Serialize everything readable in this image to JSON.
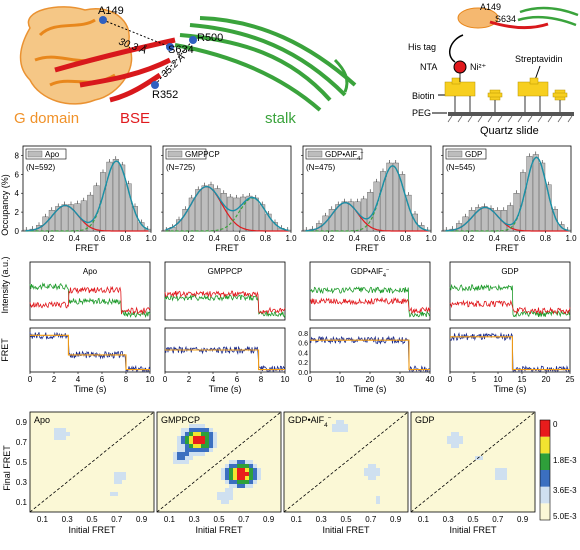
{
  "structure": {
    "labels": {
      "a149": "A149",
      "s634": "S634",
      "r500": "R500",
      "r352": "R352",
      "dist1": "30.3 Å",
      "dist2": "35.2 Å",
      "g_domain": "G domain",
      "bse": "BSE",
      "stalk": "stalk"
    },
    "colors": {
      "g_domain": "#f0922a",
      "bse": "#e0191d",
      "stalk": "#3aa33c"
    }
  },
  "schematic": {
    "a149": "A149",
    "s634": "S634",
    "his_tag": "His tag",
    "nta": "NTA",
    "ni": "Ni²⁺",
    "streptavidin": "Streptavidin",
    "biotin": "Biotin",
    "peg": "PEG",
    "slide": "Quartz slide"
  },
  "histograms": {
    "ylabel": "Occupancy (%)",
    "xlabel": "FRET",
    "yticks": [
      "0",
      "2",
      "4",
      "6",
      "8"
    ],
    "xticks": [
      "0.2",
      "0.4",
      "0.6",
      "0.8",
      "1.0"
    ],
    "panels": [
      {
        "legend": "Apo",
        "n": "(N=592)"
      },
      {
        "legend": "GMPPCP",
        "n": "(N=725)"
      },
      {
        "legend": "GDP•AlF",
        "legend_sub": "4",
        "legend_sup": "−",
        "n": "(N=475)"
      },
      {
        "legend": "GDP",
        "n": "(N=545)"
      }
    ]
  },
  "chart_data": [
    {
      "type": "bar",
      "title": "Apo",
      "xlabel": "FRET",
      "ylabel": "Occupancy (%)",
      "xlim": [
        0,
        1.0
      ],
      "ylim": [
        0,
        9
      ],
      "x": [
        0.025,
        0.075,
        0.125,
        0.175,
        0.225,
        0.275,
        0.325,
        0.375,
        0.425,
        0.475,
        0.525,
        0.575,
        0.625,
        0.675,
        0.725,
        0.775,
        0.825,
        0.875,
        0.925,
        0.975
      ],
      "values": [
        0.1,
        0.2,
        0.6,
        1.5,
        2.2,
        2.6,
        2.8,
        2.8,
        2.9,
        3.2,
        3.8,
        4.8,
        6.2,
        7.3,
        7.6,
        7.0,
        5.0,
        2.6,
        0.9,
        0.2
      ],
      "fits": [
        {
          "mu": 0.33,
          "sd": 0.1,
          "a": 2.7
        },
        {
          "mu": 0.73,
          "sd": 0.09,
          "a": 7.4
        }
      ]
    },
    {
      "type": "bar",
      "title": "GMPPCP",
      "xlabel": "FRET",
      "ylabel": "Occupancy (%)",
      "xlim": [
        0,
        1.0
      ],
      "ylim": [
        0,
        9
      ],
      "x": [
        0.025,
        0.075,
        0.125,
        0.175,
        0.225,
        0.275,
        0.325,
        0.375,
        0.425,
        0.475,
        0.525,
        0.575,
        0.625,
        0.675,
        0.725,
        0.775,
        0.825,
        0.875,
        0.925,
        0.975
      ],
      "values": [
        0.1,
        0.4,
        1.2,
        2.3,
        3.5,
        4.4,
        4.8,
        4.9,
        4.5,
        4.0,
        3.6,
        3.5,
        3.6,
        3.7,
        3.5,
        2.8,
        1.8,
        0.9,
        0.3,
        0.1
      ],
      "fits": [
        {
          "mu": 0.34,
          "sd": 0.12,
          "a": 4.7
        },
        {
          "mu": 0.7,
          "sd": 0.1,
          "a": 3.5
        }
      ]
    },
    {
      "type": "bar",
      "title": "GDP•AlF4−",
      "xlabel": "FRET",
      "ylabel": "Occupancy (%)",
      "xlim": [
        0,
        1.0
      ],
      "ylim": [
        0,
        9
      ],
      "x": [
        0.025,
        0.075,
        0.125,
        0.175,
        0.225,
        0.275,
        0.325,
        0.375,
        0.425,
        0.475,
        0.525,
        0.575,
        0.625,
        0.675,
        0.725,
        0.775,
        0.825,
        0.875,
        0.925,
        0.975
      ],
      "values": [
        0.1,
        0.2,
        0.8,
        1.6,
        2.3,
        2.8,
        3.1,
        3.1,
        3.1,
        3.4,
        4.1,
        5.2,
        6.3,
        7.2,
        7.2,
        6.0,
        3.8,
        1.8,
        0.6,
        0.1
      ],
      "fits": [
        {
          "mu": 0.33,
          "sd": 0.1,
          "a": 3.0
        },
        {
          "mu": 0.7,
          "sd": 0.09,
          "a": 6.9
        }
      ]
    },
    {
      "type": "bar",
      "title": "GDP",
      "xlabel": "FRET",
      "ylabel": "Occupancy (%)",
      "xlim": [
        0,
        1.0
      ],
      "ylim": [
        0,
        9
      ],
      "x": [
        0.025,
        0.075,
        0.125,
        0.175,
        0.225,
        0.275,
        0.325,
        0.375,
        0.425,
        0.475,
        0.525,
        0.575,
        0.625,
        0.675,
        0.725,
        0.775,
        0.825,
        0.875,
        0.925,
        0.975
      ],
      "values": [
        0.1,
        0.2,
        0.8,
        1.5,
        2.2,
        2.5,
        2.6,
        2.4,
        2.2,
        2.2,
        2.7,
        4.0,
        6.2,
        7.9,
        8.1,
        7.2,
        4.9,
        2.3,
        0.7,
        0.1
      ],
      "fits": [
        {
          "mu": 0.33,
          "sd": 0.1,
          "a": 2.5
        },
        {
          "mu": 0.73,
          "sd": 0.08,
          "a": 7.8
        }
      ]
    }
  ],
  "traces": {
    "intensity_ylabel": "Intensity (a.u.)",
    "fret_ylabel": "FRET",
    "time_label": "Time (s)",
    "panels": [
      {
        "title": "Apo",
        "xmax": 10,
        "xticks": [
          "0",
          "2",
          "4",
          "6",
          "8",
          "10"
        ],
        "switch": 7.6,
        "fret_levels": [
          [
            0,
            3.2,
            0.75
          ],
          [
            3.2,
            8,
            0.35
          ],
          [
            8,
            10,
            0.05
          ]
        ]
      },
      {
        "title": "GMPPCP",
        "xmax": 10,
        "xticks": [
          "0",
          "2",
          "4",
          "6",
          "8",
          "10"
        ],
        "switch": 7.8,
        "fret_levels": [
          [
            0,
            7.8,
            0.45
          ],
          [
            7.8,
            10,
            0.05
          ]
        ]
      },
      {
        "title": "GDP•AlF",
        "title_sub": "4",
        "title_sup": "−",
        "xmax": 40,
        "xticks": [
          "0",
          "10",
          "20",
          "30",
          "40"
        ],
        "switch": 33,
        "fret_levels": [
          [
            0,
            33,
            0.65
          ],
          [
            33,
            40,
            0.05
          ]
        ],
        "yticks": [
          "0.0",
          "0.2",
          "0.4",
          "0.6",
          "0.8"
        ]
      },
      {
        "title": "GDP",
        "xmax": 25,
        "xticks": [
          "0",
          "5",
          "10",
          "15",
          "20",
          "25"
        ],
        "switch": 13,
        "fret_levels": [
          [
            0,
            13,
            0.72
          ],
          [
            13,
            25,
            0.05
          ]
        ]
      }
    ]
  },
  "tdp": {
    "ylabel": "Final FRET",
    "xlabel": "Initial FRET",
    "ticks": [
      "0.1",
      "0.3",
      "0.5",
      "0.7",
      "0.9"
    ],
    "panels": [
      {
        "title": "Apo"
      },
      {
        "title": "GMPPCP"
      },
      {
        "title": "GDP•AlF",
        "title_sub": "4",
        "title_sup": "−"
      },
      {
        "title": "GDP"
      }
    ],
    "colorbar_labels": [
      "0",
      "1.8E-3",
      "3.6E-3",
      "5.0E-3"
    ],
    "colorbar_colors": [
      "#fbf8d6",
      "#cfe0f0",
      "#3b6fc0",
      "#2ea03a",
      "#f2e430",
      "#e81c1c"
    ]
  }
}
